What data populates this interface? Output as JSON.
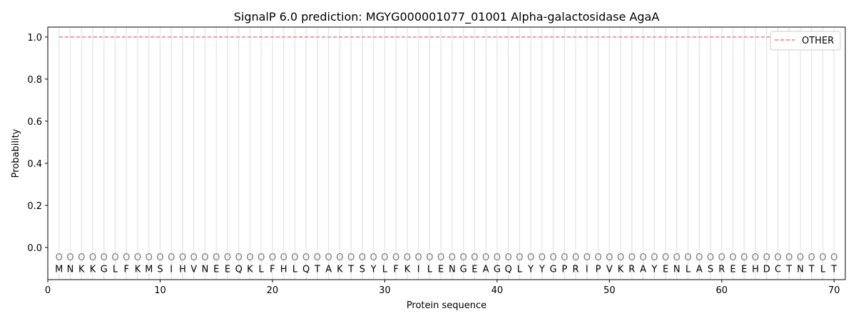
{
  "chart_data": {
    "type": "line",
    "title": "SignalP 6.0 prediction: MGYG000001077_01001 Alpha-galactosidase AgaA",
    "xlabel": "Protein sequence",
    "ylabel": "Probability",
    "xlim": [
      0,
      71
    ],
    "ylim": [
      -0.153,
      1.047
    ],
    "xticks": [
      0,
      10,
      20,
      30,
      40,
      50,
      60,
      70
    ],
    "yticks": [
      0.0,
      0.2,
      0.4,
      0.6,
      0.8,
      1.0
    ],
    "ytick_labels": [
      "0.0",
      "0.2",
      "0.4",
      "0.6",
      "0.8",
      "1.0"
    ],
    "grid": "vertical lines at each residue",
    "legend_position": "top-right",
    "series": [
      {
        "name": "OTHER",
        "color": "#f08080",
        "style": "dashed",
        "x_range": [
          1,
          70
        ],
        "value": 1.0
      }
    ],
    "sequence": [
      "M",
      "N",
      "K",
      "K",
      "G",
      "L",
      "F",
      "K",
      "M",
      "S",
      "I",
      "H",
      "V",
      "N",
      "E",
      "E",
      "Q",
      "K",
      "L",
      "F",
      "H",
      "L",
      "Q",
      "T",
      "A",
      "K",
      "T",
      "S",
      "Y",
      "L",
      "F",
      "K",
      "I",
      "L",
      "E",
      "N",
      "G",
      "E",
      "A",
      "G",
      "Q",
      "L",
      "Y",
      "Y",
      "G",
      "P",
      "R",
      "I",
      "P",
      "V",
      "K",
      "R",
      "A",
      "Y",
      "E",
      "N",
      "L",
      "A",
      "S",
      "R",
      "E",
      "E",
      "H",
      "D",
      "C",
      "T",
      "N",
      "T",
      "L",
      "T"
    ],
    "predicted_labels": "OOOOOOOOOOOOOOOOOOOOOOOOOOOOOOOOOOOOOOOOOOOOOOOOOOOOOOOOOOOOOOOOOOOOOO"
  }
}
